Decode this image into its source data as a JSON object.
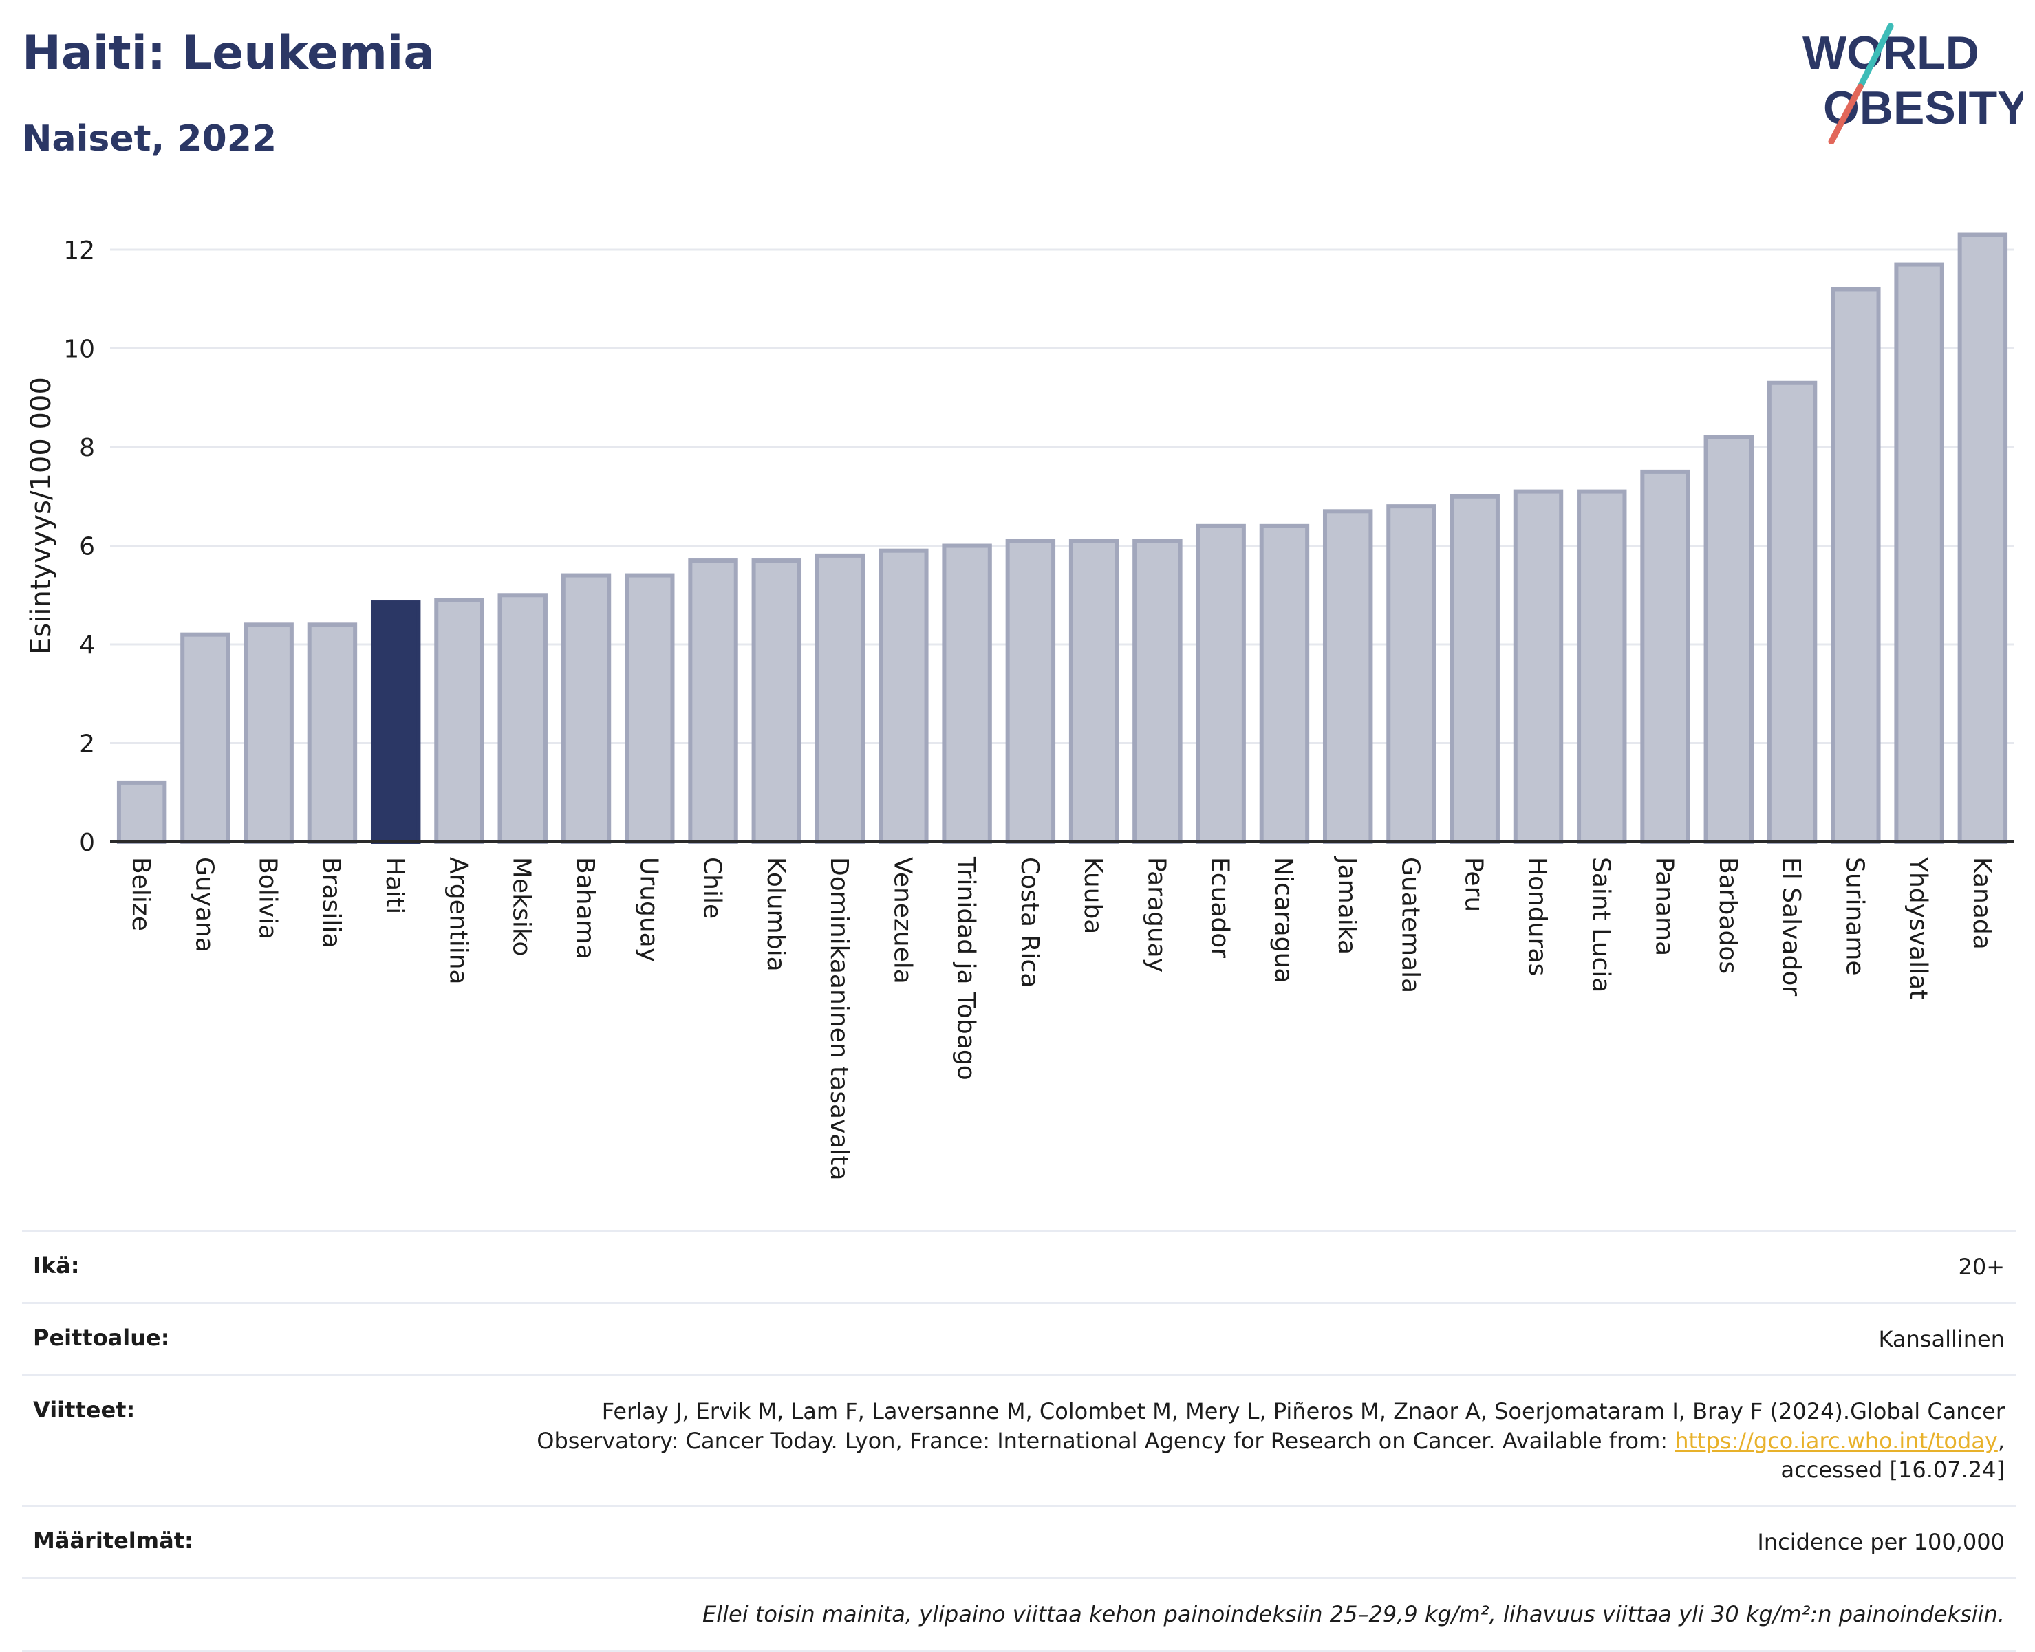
{
  "header": {
    "title": "Haiti: Leukemia",
    "subtitle": "Naiset, 2022",
    "logo_text_line1": "WORLD",
    "logo_text_line2": "OBESITY"
  },
  "colors": {
    "highlight_bar": "#2b3765",
    "other_bar_fill": "#c0c4d1",
    "other_bar_stroke": "#a2a7bc",
    "title": "#2b3765",
    "logo_teal": "#3dbcb8",
    "logo_coral": "#e2675a",
    "link": "#e8b12a"
  },
  "chart_data": {
    "type": "bar",
    "title": "Haiti: Leukemia",
    "subtitle": "Naiset, 2022",
    "xlabel": "",
    "ylabel": "Esiintyvyys/100 000",
    "ylim": [
      0,
      12.6
    ],
    "yticks": [
      0,
      2,
      4,
      6,
      8,
      10,
      12
    ],
    "grid": true,
    "highlight": "Haiti",
    "categories": [
      "Belize",
      "Guyana",
      "Bolivia",
      "Brasilia",
      "Haiti",
      "Argentiina",
      "Meksiko",
      "Bahama",
      "Uruguay",
      "Chile",
      "Kolumbia",
      "Dominikaaninen tasavalta",
      "Venezuela",
      "Trinidad ja Tobago",
      "Costa Rica",
      "Kuuba",
      "Paraguay",
      "Ecuador",
      "Nicaragua",
      "Jamaika",
      "Guatemala",
      "Peru",
      "Honduras",
      "Saint Lucia",
      "Panama",
      "Barbados",
      "El Salvador",
      "Suriname",
      "Yhdysvallat",
      "Kanada"
    ],
    "values": [
      1.2,
      4.2,
      4.4,
      4.4,
      4.85,
      4.9,
      5.0,
      5.4,
      5.4,
      5.7,
      5.7,
      5.8,
      5.9,
      6.0,
      6.1,
      6.1,
      6.1,
      6.4,
      6.4,
      6.7,
      6.8,
      7.0,
      7.1,
      7.1,
      7.5,
      8.2,
      9.3,
      11.2,
      11.7,
      12.3
    ]
  },
  "meta": {
    "age_label": "Ikä:",
    "age_value": "20+",
    "coverage_label": "Peittoalue:",
    "coverage_value": "Kansallinen",
    "refs_label": "Viitteet:",
    "refs_line1": "Ferlay J, Ervik M, Lam F, Laversanne M, Colombet M, Mery L, Piñeros M, Znaor A, Soerjomataram I, Bray F (2024).Global Cancer",
    "refs_line2_text": "Observatory: Cancer Today. Lyon, France: International Agency for Research on Cancer. Available from: ",
    "refs_link": "https://gco.iarc.who.int/today",
    "refs_line2_end": ",",
    "refs_line3": "accessed [16.07.24]",
    "defs_label": "Määritelmät:",
    "defs_value": "Incidence per 100,000",
    "note": "Ellei toisin mainita, ylipaino viittaa kehon painoindeksiin 25–29,9 kg/m², lihavuus viittaa yli 30 kg/m²:n painoindeksiin."
  }
}
